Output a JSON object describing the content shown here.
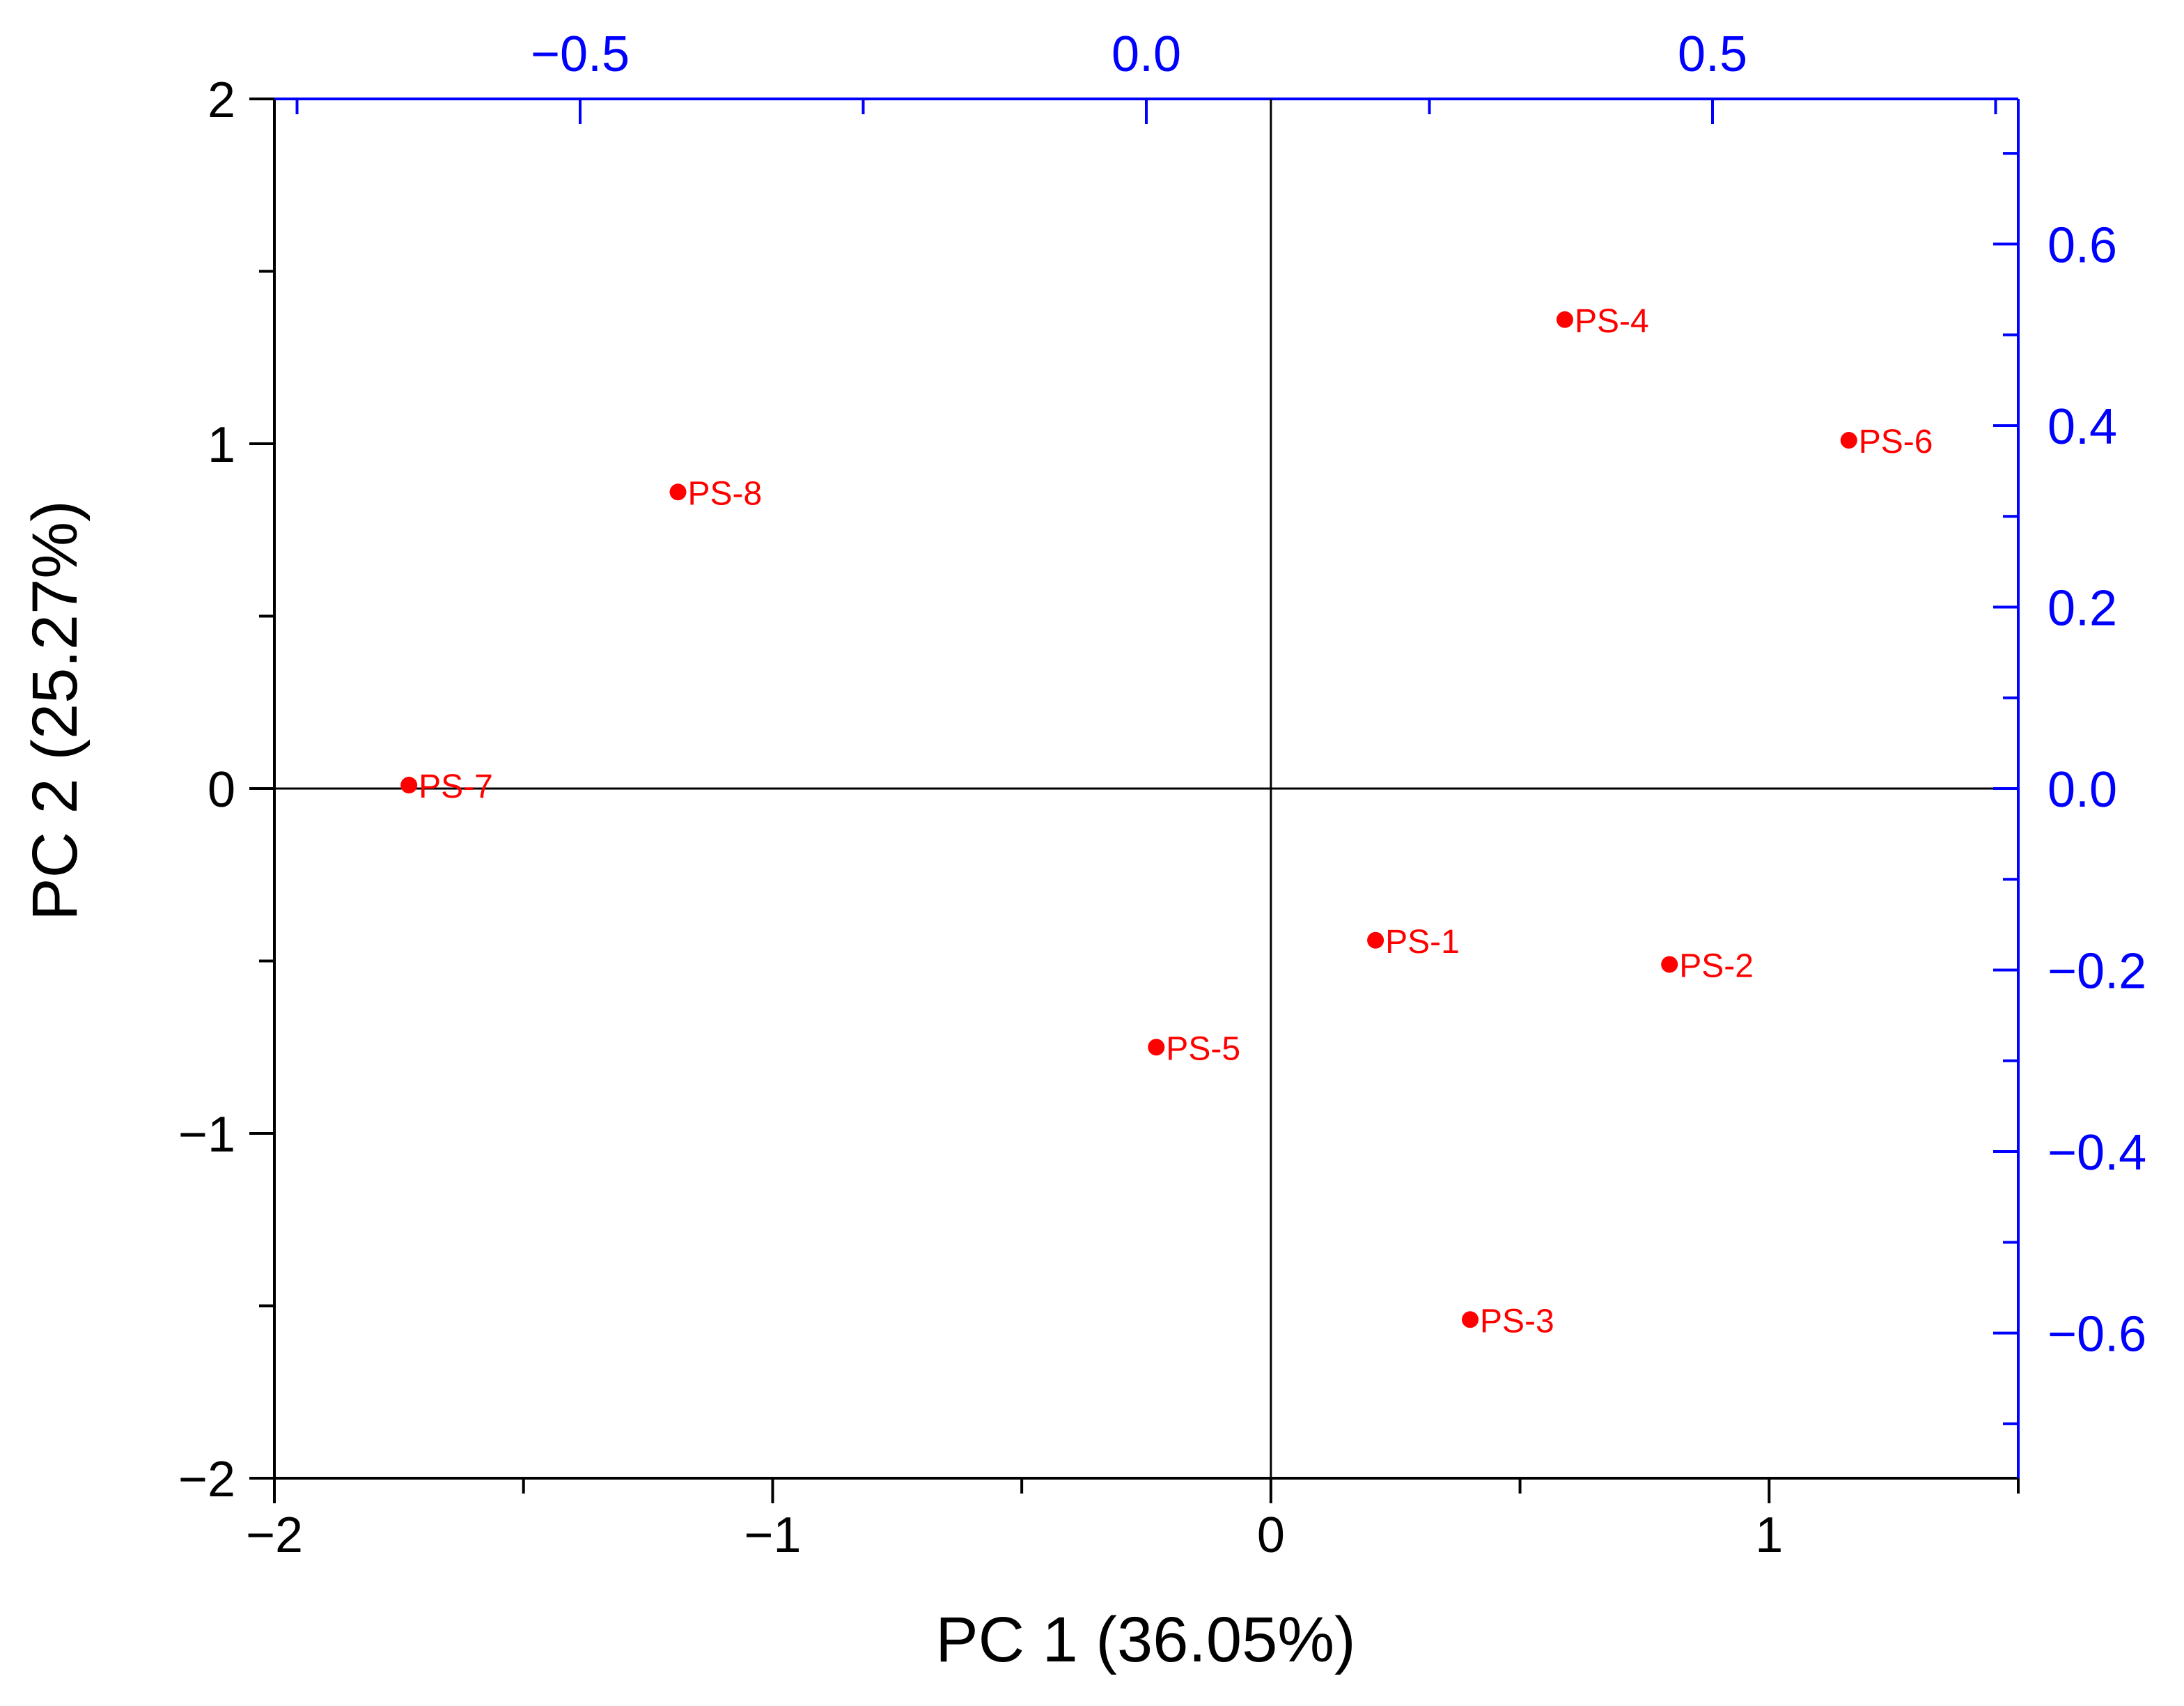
{
  "chart_data": {
    "type": "scatter",
    "title": "",
    "xlabel": "PC 1 (36.05%)",
    "ylabel": "PC 2 (25.27%)",
    "xlim": [
      -2,
      1.5
    ],
    "ylim": [
      -2,
      2
    ],
    "x_ticks": [
      "−2",
      "−1",
      "0",
      "1"
    ],
    "y_ticks": [
      "−2",
      "−1",
      "0",
      "1",
      "2"
    ],
    "top_axis": {
      "range": [
        -0.77,
        0.77
      ],
      "ticks": [
        "−0.5",
        "0.0",
        "0.5"
      ]
    },
    "right_axis": {
      "range": [
        -0.76,
        0.76
      ],
      "ticks": [
        "0.6",
        "0.4",
        "0.2",
        "0.0",
        "−0.2",
        "−0.4",
        "−0.6"
      ]
    },
    "grid": false,
    "points": [
      {
        "label": "PS-1",
        "x": 0.21,
        "y": -0.44
      },
      {
        "label": "PS-2",
        "x": 0.8,
        "y": -0.51
      },
      {
        "label": "PS-3",
        "x": 0.4,
        "y": -1.54
      },
      {
        "label": "PS-4",
        "x": 0.59,
        "y": 1.36
      },
      {
        "label": "PS-5",
        "x": -0.23,
        "y": -0.75
      },
      {
        "label": "PS-6",
        "x": 1.16,
        "y": 1.01
      },
      {
        "label": "PS-7",
        "x": -1.73,
        "y": 0.01
      },
      {
        "label": "PS-8",
        "x": -1.19,
        "y": 0.86
      }
    ],
    "colors": {
      "points": "#ff0000",
      "secondary_axes": "#0000ff",
      "primary_axes": "#000000"
    }
  }
}
